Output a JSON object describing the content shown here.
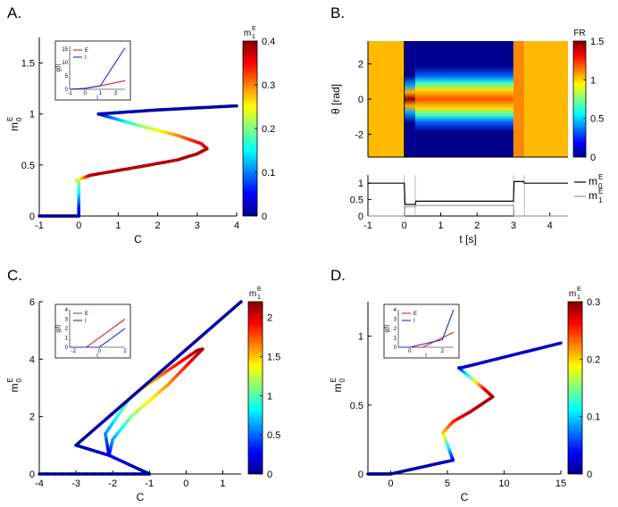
{
  "colormap": [
    "#00008f",
    "#0000ff",
    "#0080ff",
    "#00ffff",
    "#80ff80",
    "#ffff00",
    "#ff8000",
    "#ff0000",
    "#800000"
  ],
  "chart_data": [
    {
      "panel": "A.",
      "type": "line",
      "xlabel": "C",
      "ylabel_base": "m",
      "ylabel_sup": "E",
      "ylabel_sub": "0",
      "xlim": [
        -1,
        4
      ],
      "ylim": [
        0,
        1.75
      ],
      "xticks": [
        -1,
        0,
        1,
        2,
        3,
        4
      ],
      "yticks": [
        0,
        0.5,
        1,
        1.5
      ],
      "colorbar": {
        "title_base": "m",
        "title_sup": "E",
        "title_sub": "1",
        "min": 0,
        "max": 0.4,
        "ticks": [
          0,
          0.1,
          0.2,
          0.3,
          0.4
        ]
      },
      "curve": {
        "x": [
          -1,
          0,
          0,
          -0.05,
          0.3,
          1.5,
          2.5,
          3.0,
          3.25,
          3.1,
          2.5,
          1.5,
          0.5,
          0.5,
          2,
          4
        ],
        "y": [
          0,
          0,
          0.33,
          0.35,
          0.4,
          0.48,
          0.55,
          0.61,
          0.66,
          0.71,
          0.79,
          0.89,
          1.0,
          1.0,
          1.04,
          1.08
        ],
        "c": [
          0,
          0,
          0.2,
          0.2,
          0.38,
          0.38,
          0.38,
          0.38,
          0.38,
          0.36,
          0.3,
          0.2,
          0.05,
          0.02,
          0.01,
          0.01
        ]
      },
      "inset": {
        "xlabel": "I",
        "ylabel": "g(I)",
        "xticks": [
          -1,
          0,
          1,
          2
        ],
        "yticks": [
          0,
          5,
          10,
          15
        ],
        "xlim": [
          -1,
          2.6
        ],
        "ylim": [
          0,
          16
        ],
        "series": [
          {
            "name": "E",
            "color": "#e0201c",
            "x": [
              -1,
              0,
              1,
              2.6
            ],
            "y": [
              0,
              0.3,
              1.3,
              3.2
            ]
          },
          {
            "name": "I",
            "color": "#1c2ee0",
            "x": [
              -1,
              0,
              1,
              2.6
            ],
            "y": [
              0,
              0.3,
              1.3,
              15.5
            ]
          }
        ]
      }
    },
    {
      "panel": "B.",
      "type": "heatmap",
      "ylabel": "θ [rad]",
      "xlim": [
        -1,
        4.5
      ],
      "ylim": [
        -3.3,
        3.3
      ],
      "yticks": [
        -2,
        0,
        2
      ],
      "colorbar": {
        "title": "FR",
        "min": 0,
        "max": 1.5,
        "ticks": [
          0,
          0.5,
          1,
          1.5
        ]
      },
      "bottom": {
        "xlabel": "t [s]",
        "xlim": [
          -1,
          4.5
        ],
        "ylim": [
          0,
          1.25
        ],
        "xticks": [
          -1,
          0,
          1,
          2,
          3,
          4
        ],
        "yticks": [
          0,
          0.5,
          1
        ],
        "series": [
          {
            "name_base": "m",
            "name_sup": "E",
            "name_sub": "0",
            "color": "#000000",
            "x": [
              -1,
              0,
              0.02,
              0.3,
              0.32,
              3.0,
              3.02,
              3.28,
              3.3,
              4.5
            ],
            "y": [
              1.0,
              1.0,
              0.35,
              0.35,
              0.45,
              0.45,
              1.05,
              1.05,
              1.0,
              1.0
            ]
          },
          {
            "name_base": "m",
            "name_sup": "E",
            "name_sub": "1",
            "color": "#999999",
            "x": [
              -1,
              0,
              0.02,
              0.3,
              0.32,
              3.0,
              3.02,
              3.28,
              3.3,
              4.5
            ],
            "y": [
              0,
              0,
              0.28,
              0.28,
              0.32,
              0.32,
              0,
              0,
              0,
              0
            ]
          }
        ]
      }
    },
    {
      "panel": "C.",
      "type": "line",
      "xlabel": "C",
      "ylabel_base": "m",
      "ylabel_sup": "E",
      "ylabel_sub": "0",
      "xlim": [
        -4,
        1.5
      ],
      "ylim": [
        0,
        6
      ],
      "xticks": [
        -4,
        -3,
        -2,
        -1,
        0,
        1
      ],
      "yticks": [
        0,
        2,
        4,
        6
      ],
      "colorbar": {
        "title_base": "m",
        "title_sup": "E",
        "title_sub": "1",
        "min": 0,
        "max": 2.2,
        "ticks": [
          0,
          0.5,
          1,
          1.5,
          2
        ]
      },
      "curve": {
        "x": [
          -4,
          -1,
          -2.1,
          -2.0,
          -1.5,
          -0.5,
          0.45,
          0.3,
          -0.5,
          -1.5,
          -2.2,
          -2.1,
          -3,
          1.5
        ],
        "y": [
          0,
          0,
          0.65,
          1.2,
          2.0,
          3.1,
          4.35,
          4.3,
          3.6,
          2.7,
          1.4,
          0.65,
          1.0,
          6.0
        ],
        "c": [
          0,
          0,
          0.25,
          0.6,
          1.1,
          1.6,
          2.1,
          2.1,
          1.8,
          1.2,
          0.6,
          0.2,
          0.05,
          0.05
        ]
      },
      "inset": {
        "xlabel": "I",
        "ylabel": "g(I)",
        "xticks": [
          -2,
          0,
          2
        ],
        "yticks": [
          0,
          1,
          2,
          3,
          4
        ],
        "xlim": [
          -2.3,
          2
        ],
        "ylim": [
          0,
          4
        ],
        "series": [
          {
            "name": "E",
            "color": "#e0201c",
            "x": [
              -2.3,
              -1,
              2
            ],
            "y": [
              0,
              0,
              3
            ]
          },
          {
            "name": "I",
            "color": "#1c2ee0",
            "x": [
              -2.3,
              0,
              2
            ],
            "y": [
              0,
              0,
              2
            ]
          }
        ]
      }
    },
    {
      "panel": "D.",
      "type": "line",
      "xlabel": "C",
      "ylabel_base": "m",
      "ylabel_sup": "E",
      "ylabel_sub": "0",
      "xlim": [
        -2,
        15
      ],
      "ylim": [
        0,
        1.25
      ],
      "xticks": [
        0,
        5,
        10,
        15
      ],
      "yticks": [
        0,
        0.5,
        1
      ],
      "colorbar": {
        "title_base": "m",
        "title_sup": "E",
        "title_sub": "1",
        "min": 0,
        "max": 0.3,
        "ticks": [
          0,
          0.1,
          0.2,
          0.3
        ]
      },
      "curve": {
        "x": [
          -2,
          0,
          5.5,
          4.6,
          5.5,
          7,
          9.0,
          8.2,
          6.0,
          6.2,
          15
        ],
        "y": [
          0,
          0,
          0.1,
          0.3,
          0.38,
          0.45,
          0.56,
          0.62,
          0.77,
          0.77,
          0.95
        ],
        "c": [
          0,
          0,
          0.02,
          0.2,
          0.25,
          0.28,
          0.29,
          0.27,
          0.05,
          0.02,
          0.02
        ]
      },
      "inset": {
        "xlabel": "I",
        "ylabel": "g(I)",
        "xticks": [
          0,
          2
        ],
        "yticks": [
          0,
          1,
          2,
          3,
          4
        ],
        "xlim": [
          -0.7,
          2.7
        ],
        "ylim": [
          0,
          4
        ],
        "series": [
          {
            "name": "E",
            "color": "#e0201c",
            "x": [
              -0.7,
              0.8,
              2.7
            ],
            "y": [
              0,
              0,
              1.6
            ]
          },
          {
            "name": "I",
            "color": "#1c2ee0",
            "x": [
              -0.7,
              0,
              2,
              2.7
            ],
            "y": [
              0,
              0,
              0.8,
              4
            ]
          }
        ]
      }
    }
  ]
}
